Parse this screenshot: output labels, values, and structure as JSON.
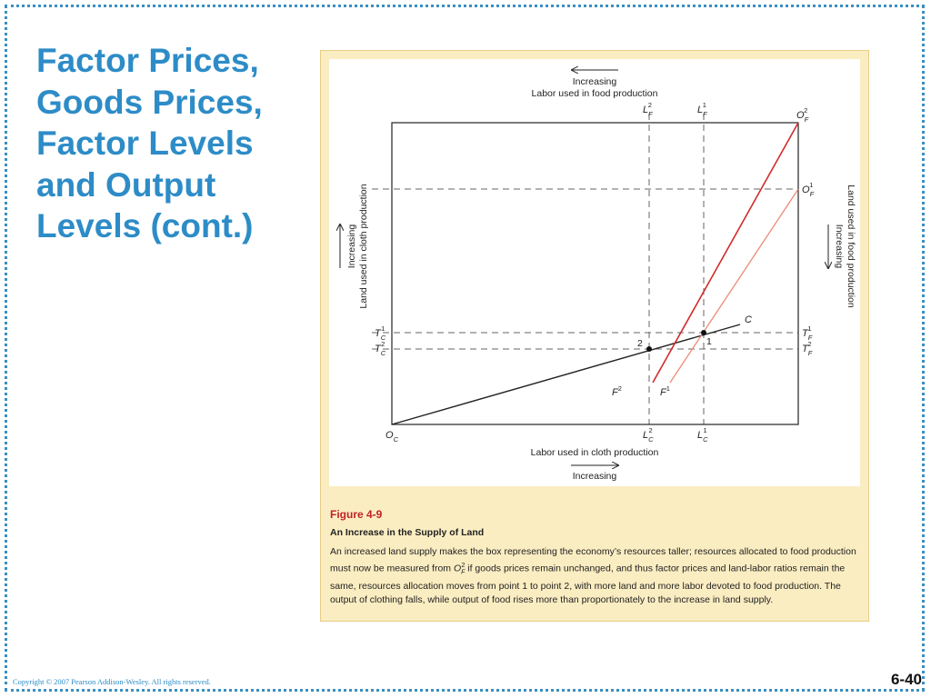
{
  "slide": {
    "title_lines": [
      "Factor Prices,",
      "Goods Prices,",
      "Factor Levels",
      "and Output",
      "Levels (cont.)"
    ],
    "copyright": "Copyright © 2007 Pearson Addison-Wesley.  All rights reserved.",
    "slide_number": "6-40"
  },
  "figure": {
    "number": "Figure 4-9",
    "title": "An Increase in the Supply of Land",
    "caption_before": "An increased land supply makes the box representing the economy’s resources taller; resources allocated to food production must now be measured from ",
    "caption_symbol": "O",
    "caption_symbol_sub": "F",
    "caption_symbol_sup": "2",
    "caption_after": " if goods prices remain unchanged, and thus factor prices and land-labor ratios remain the same, resources allocation moves from point 1 to point 2, with more land and more labor devoted to food production. The output of clothing falls, while output of food rises more than proportionately to the increase in land supply."
  },
  "diagram": {
    "top_axis": {
      "increasing": "Increasing",
      "label": "Labor used in food production"
    },
    "bottom_axis": {
      "label": "Labor used in cloth production",
      "increasing": "Increasing"
    },
    "left_axis": {
      "increasing": "Increasing",
      "label": "Land used in cloth production"
    },
    "right_axis": {
      "label": "Land used in food production",
      "increasing": "Increasing"
    },
    "labels": {
      "LF2": {
        "base": "L",
        "sub": "F",
        "sup": "2"
      },
      "LF1": {
        "base": "L",
        "sub": "F",
        "sup": "1"
      },
      "OF2": {
        "base": "O",
        "sub": "F",
        "sup": "2"
      },
      "OF1": {
        "base": "O",
        "sub": "F",
        "sup": "1"
      },
      "TC1": {
        "base": "T",
        "sub": "C",
        "sup": "1"
      },
      "TC2": {
        "base": "T",
        "sub": "C",
        "sup": "2"
      },
      "TF1": {
        "base": "T",
        "sub": "F",
        "sup": "1"
      },
      "TF2": {
        "base": "T",
        "sub": "F",
        "sup": "2"
      },
      "LC2": {
        "base": "L",
        "sub": "C",
        "sup": "2"
      },
      "LC1": {
        "base": "L",
        "sub": "C",
        "sup": "1"
      },
      "OC": {
        "base": "O",
        "sub": "C"
      },
      "C": "C",
      "F2": {
        "base": "F",
        "sup": "2"
      },
      "F1": {
        "base": "F",
        "sup": "1"
      },
      "point2": "2",
      "point1": "1"
    },
    "colors": {
      "red_line": "#d42a2a",
      "salmon_line": "#ee8a76",
      "black_line": "#222222",
      "dashed": "#666666"
    }
  }
}
